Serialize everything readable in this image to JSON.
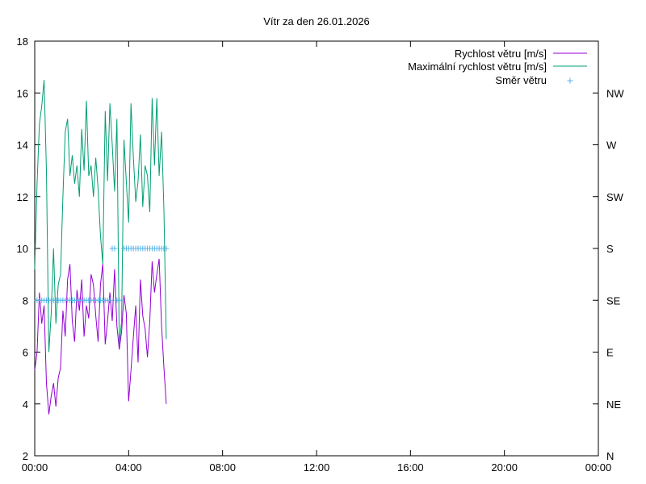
{
  "chart_data": {
    "type": "line",
    "title": "Vítr za den 26.01.2026",
    "x_ticks": [
      "00:00",
      "04:00",
      "08:00",
      "12:00",
      "16:00",
      "20:00",
      "00:00"
    ],
    "xlim_hours": [
      0,
      24
    ],
    "y_left_ticks": [
      2,
      4,
      6,
      8,
      10,
      12,
      14,
      16,
      18
    ],
    "ylim": [
      2,
      18
    ],
    "y_right_ticks": [
      "N",
      "NE",
      "E",
      "SE",
      "S",
      "SW",
      "W",
      "NW"
    ],
    "grid": false,
    "legend_position": "top-right",
    "series": [
      {
        "name": "Rychlost větru [m/s]",
        "color": "#9400d3",
        "style": "line",
        "x": [
          0.0,
          0.1,
          0.2,
          0.3,
          0.4,
          0.5,
          0.6,
          0.7,
          0.8,
          0.9,
          1.0,
          1.1,
          1.2,
          1.3,
          1.4,
          1.5,
          1.6,
          1.7,
          1.8,
          1.9,
          2.0,
          2.1,
          2.2,
          2.3,
          2.4,
          2.5,
          2.6,
          2.7,
          2.8,
          2.9,
          3.0,
          3.1,
          3.2,
          3.3,
          3.4,
          3.5,
          3.6,
          3.7,
          3.8,
          3.9,
          4.0,
          4.1,
          4.2,
          4.3,
          4.4,
          4.5,
          4.6,
          4.7,
          4.8,
          4.9,
          5.0,
          5.1,
          5.2,
          5.3,
          5.4,
          5.5,
          5.6
        ],
        "y": [
          5.3,
          6.0,
          8.3,
          7.1,
          7.8,
          4.8,
          3.6,
          4.3,
          4.8,
          3.9,
          5.0,
          5.4,
          7.6,
          6.6,
          8.8,
          9.4,
          7.2,
          6.4,
          8.4,
          7.6,
          8.8,
          6.6,
          7.8,
          7.3,
          9.0,
          8.6,
          7.4,
          6.4,
          8.6,
          9.4,
          6.3,
          7.2,
          8.3,
          7.2,
          9.2,
          7.0,
          6.1,
          6.8,
          8.2,
          7.5,
          4.1,
          5.3,
          6.6,
          7.8,
          5.6,
          8.8,
          7.4,
          6.9,
          5.8,
          7.2,
          9.5,
          8.3,
          9.0,
          9.6,
          7.0,
          5.4,
          4.0
        ]
      },
      {
        "name": "Maximální rychlost větru [m/s]",
        "color": "#009e73",
        "style": "line",
        "x": [
          0.0,
          0.1,
          0.2,
          0.3,
          0.4,
          0.5,
          0.6,
          0.7,
          0.8,
          0.9,
          1.0,
          1.1,
          1.2,
          1.3,
          1.4,
          1.5,
          1.6,
          1.7,
          1.8,
          1.9,
          2.0,
          2.1,
          2.2,
          2.3,
          2.4,
          2.5,
          2.6,
          2.7,
          2.8,
          2.9,
          3.0,
          3.1,
          3.2,
          3.3,
          3.4,
          3.5,
          3.6,
          3.7,
          3.8,
          3.9,
          4.0,
          4.1,
          4.2,
          4.3,
          4.4,
          4.5,
          4.6,
          4.7,
          4.8,
          4.9,
          5.0,
          5.1,
          5.2,
          5.3,
          5.4,
          5.5,
          5.6
        ],
        "y": [
          9.2,
          12.5,
          14.8,
          15.5,
          16.5,
          13.0,
          6.0,
          7.5,
          10.0,
          7.1,
          8.6,
          9.0,
          12.0,
          14.5,
          15.0,
          12.8,
          13.6,
          12.5,
          13.2,
          12.0,
          14.6,
          13.0,
          15.7,
          12.8,
          13.2,
          12.0,
          13.5,
          12.3,
          10.5,
          9.4,
          15.3,
          12.6,
          15.6,
          14.0,
          12.2,
          15.0,
          6.3,
          7.2,
          14.2,
          12.6,
          11.0,
          15.6,
          13.5,
          11.8,
          12.6,
          14.4,
          11.6,
          13.2,
          12.8,
          11.4,
          15.8,
          13.2,
          15.8,
          12.8,
          14.5,
          11.5,
          6.5
        ]
      },
      {
        "name": "Směr větru",
        "color": "#56b4e9",
        "style": "points",
        "axis": "right",
        "x": [
          0.1,
          0.2,
          0.3,
          0.4,
          0.5,
          0.6,
          0.7,
          0.8,
          0.9,
          1.0,
          1.1,
          1.2,
          1.3,
          1.4,
          1.5,
          1.6,
          1.7,
          1.8,
          1.9,
          2.0,
          2.1,
          2.2,
          2.3,
          2.4,
          2.5,
          2.6,
          2.7,
          2.8,
          2.9,
          3.0,
          3.1,
          3.2,
          3.3,
          3.4,
          3.5,
          3.6,
          3.7,
          3.8,
          3.9,
          4.0,
          4.1,
          4.2,
          4.3,
          4.4,
          4.5,
          4.6,
          4.7,
          4.8,
          4.9,
          5.0,
          5.1,
          5.2,
          5.3,
          5.4,
          5.5,
          5.6
        ],
        "y": [
          "SE",
          "SE",
          "SE",
          "SE",
          "SE",
          "SE",
          "SE",
          "SE",
          "SE",
          "SE",
          "SE",
          "SE",
          "SE",
          "SE",
          "SE",
          "SE",
          "SE",
          "SE",
          "SE",
          "SE",
          "SE",
          "SE",
          "SE",
          "SE",
          "SE",
          "SE",
          "SE",
          "SE",
          "SE",
          "SE",
          "SE",
          "SE",
          "S",
          "S",
          "SE",
          "SE",
          "SE",
          "S",
          "S",
          "S",
          "S",
          "S",
          "S",
          "S",
          "S",
          "S",
          "S",
          "S",
          "S",
          "S",
          "S",
          "S",
          "S",
          "S",
          "S",
          "S"
        ]
      }
    ]
  }
}
